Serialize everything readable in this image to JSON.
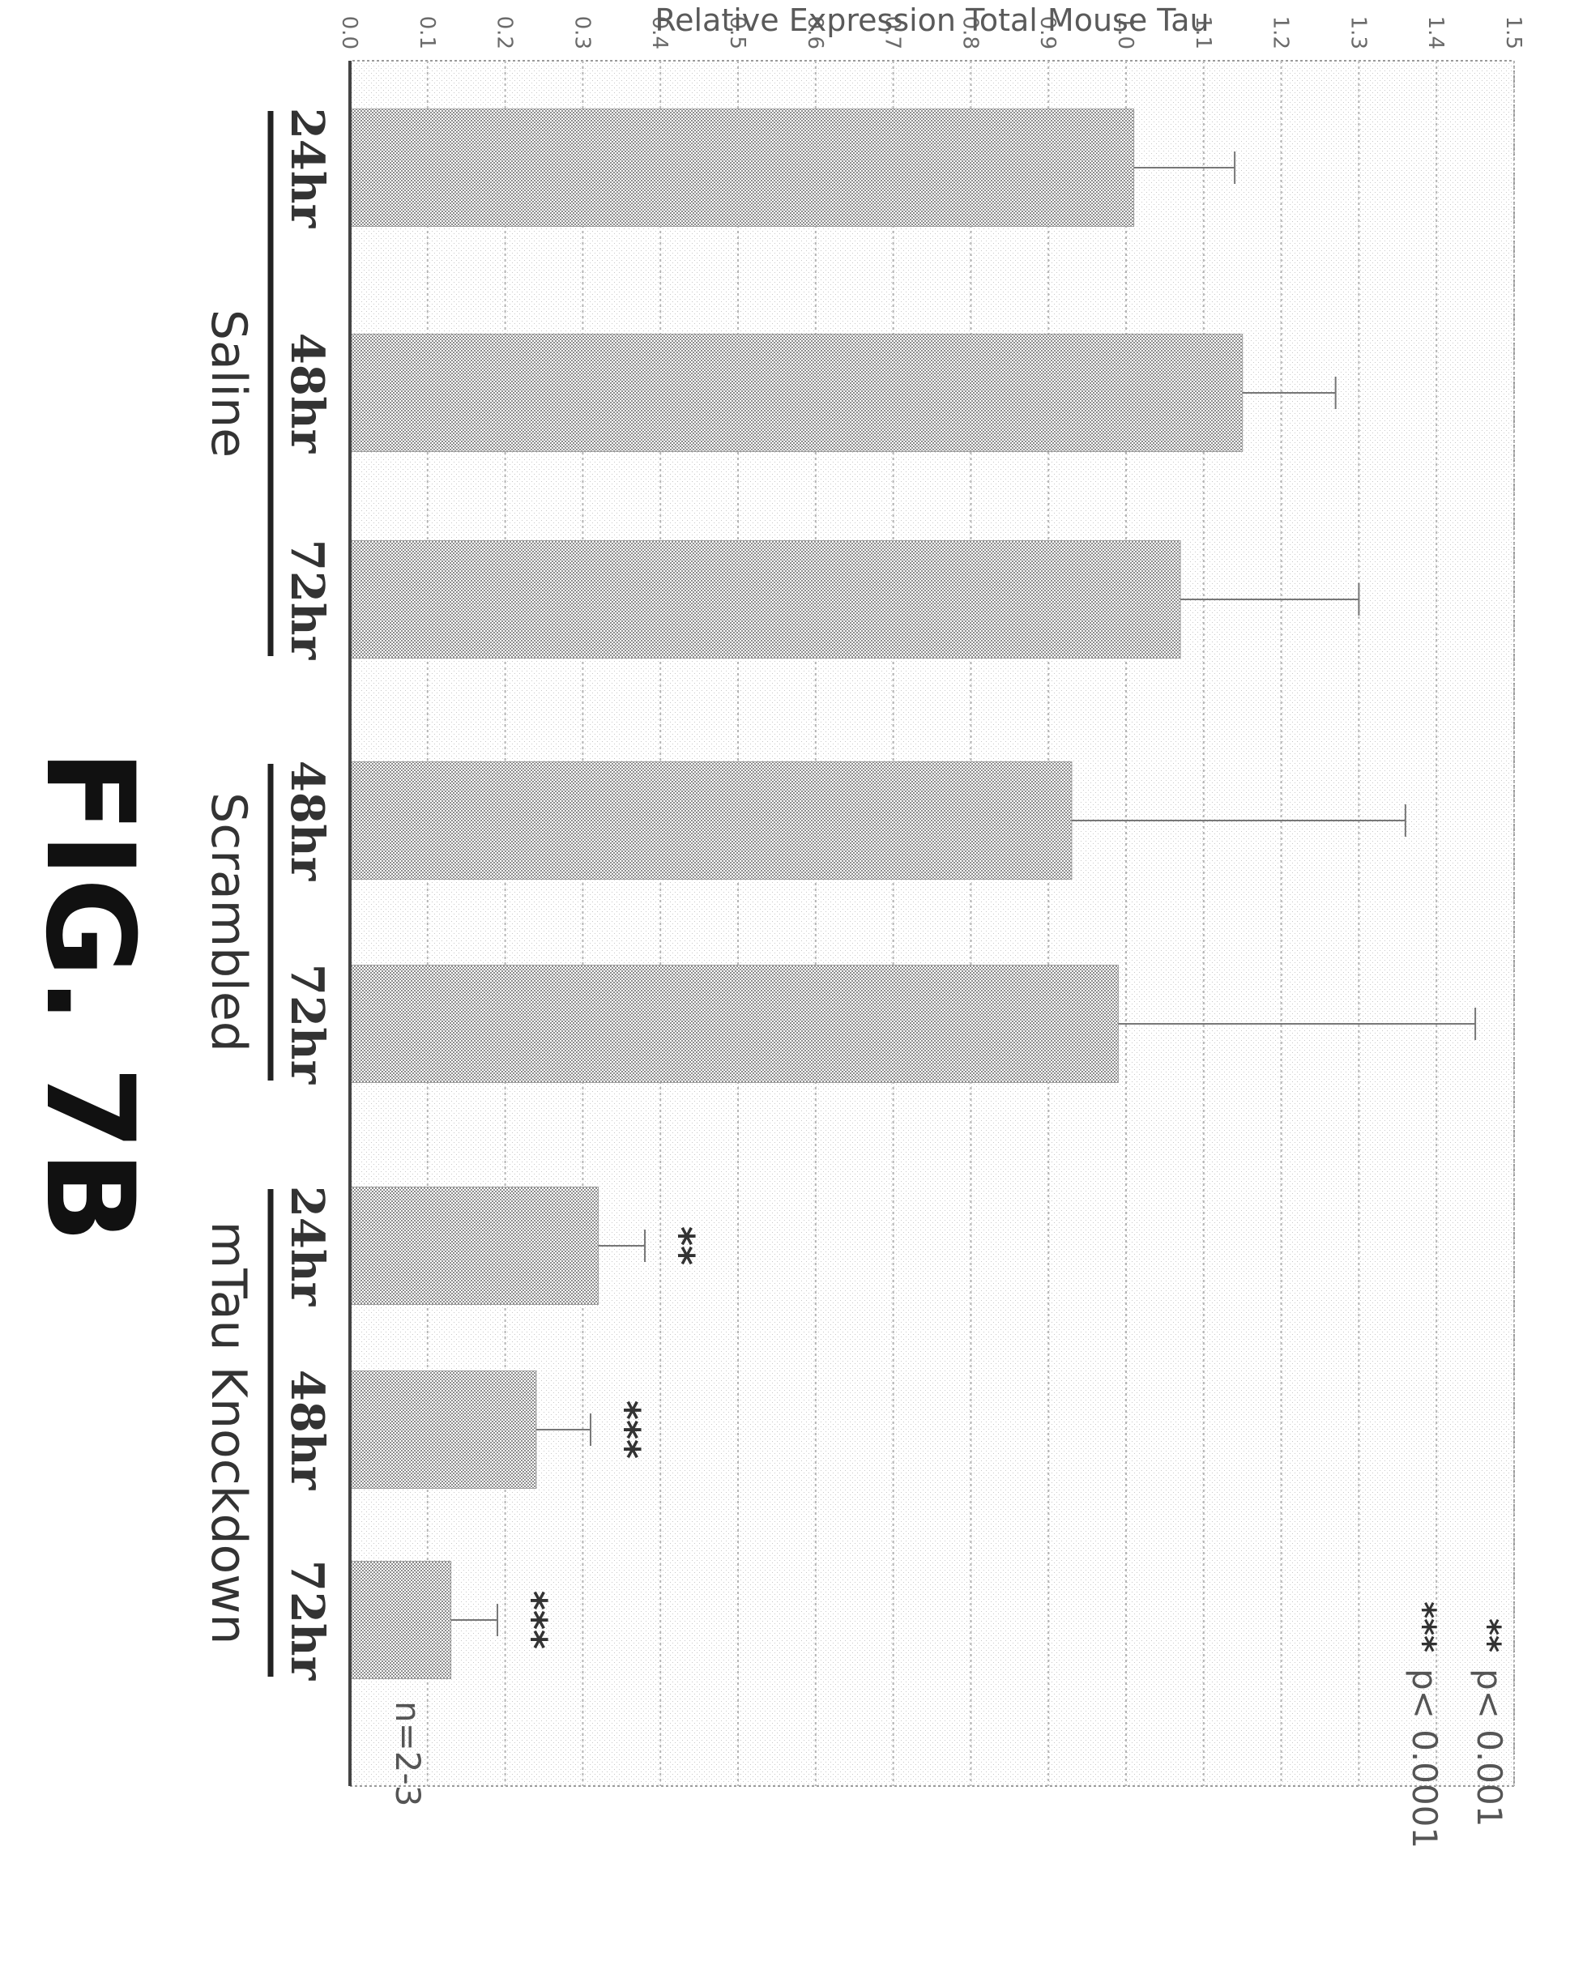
{
  "figure_label": "FIG. 7B",
  "chart_data": {
    "type": "bar",
    "orientation": "rotated-90-clockwise",
    "ylabel": "Relative Expression Total Mouse Tau",
    "xlabel": "",
    "ylim": [
      0,
      1.5
    ],
    "yticks": [
      "0.0",
      "0.1",
      "0.2",
      "0.3",
      "0.4",
      "0.5",
      "0.6",
      "0.7",
      "0.8",
      "0.9",
      "1.0",
      "1.1",
      "1.2",
      "1.3",
      "1.4",
      "1.5"
    ],
    "grid": true,
    "categories": [
      "24hr",
      "48hr",
      "72hr",
      "48hr",
      "72hr",
      "24hr",
      "48hr",
      "72hr"
    ],
    "groups": [
      {
        "label": "Saline",
        "indices": [
          0,
          1,
          2
        ]
      },
      {
        "label": "Scrambled",
        "indices": [
          3,
          4
        ]
      },
      {
        "label": "mTau Knockdown",
        "indices": [
          5,
          6,
          7
        ]
      }
    ],
    "values": [
      1.01,
      1.15,
      1.07,
      0.93,
      0.99,
      0.32,
      0.24,
      0.13
    ],
    "error_upper": [
      1.14,
      1.27,
      1.3,
      1.36,
      1.45,
      0.38,
      0.31,
      0.19
    ],
    "significance": [
      "",
      "",
      "",
      "",
      "",
      "**",
      "***",
      "***"
    ],
    "legend": [
      {
        "marker": "**",
        "text": "p< 0.001"
      },
      {
        "marker": "***",
        "text": "p< 0.0001"
      }
    ],
    "annotation": "n=2-3",
    "bar_color": "#bdbdbd"
  }
}
